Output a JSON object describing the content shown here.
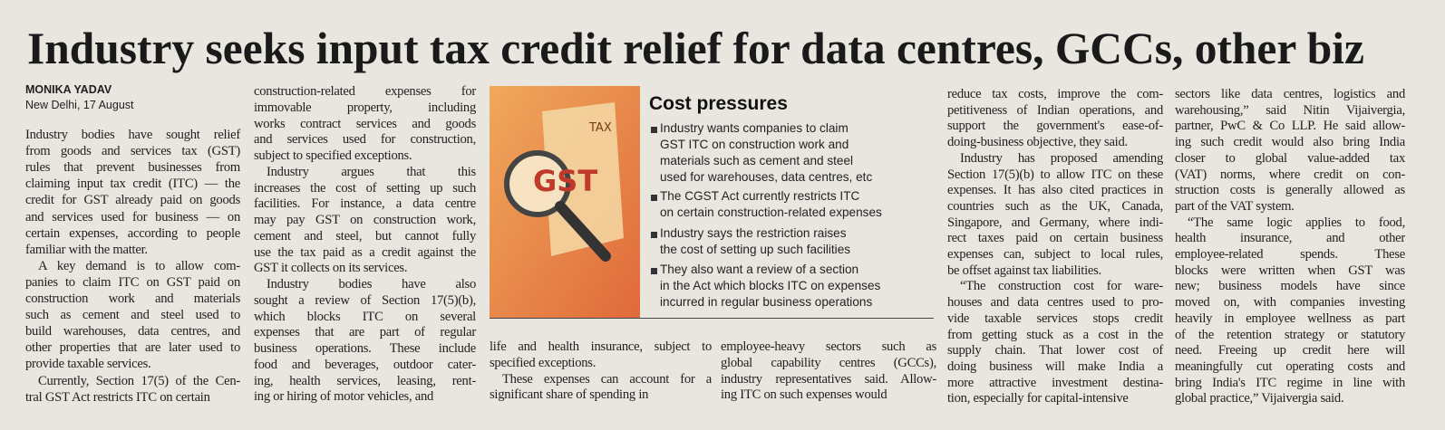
{
  "headline": "Industry seeks input tax credit relief for data centres, GCCs, other biz",
  "byline": {
    "author": "MONIKA YADAV",
    "dateline": "New Delhi, 17 August"
  },
  "columns": [
    {
      "paragraphs": [
        [
          "Industry bodies have sought relief",
          "from goods and services tax (GST)",
          "rules that prevent businesses from",
          "claiming input tax credit (ITC) — the",
          "credit for GST already paid on goods",
          "and services used for business — on",
          "certain expenses, according to people",
          "familiar with the matter."
        ],
        [
          "A key demand is to allow com-",
          "panies to claim ITC on GST paid on",
          "construction work and materials",
          "such as cement and steel used to",
          "build warehouses, data centres, and",
          "other properties that are later used to",
          "provide taxable services."
        ],
        [
          "Currently, Section 17(5) of the Cen-",
          "tral GST Act restricts ITC on certain"
        ]
      ]
    },
    {
      "paragraphs": [
        [
          "construction-related expenses for",
          "immovable property, including",
          "works contract services and goods",
          "and services used for construction,",
          "subject to specified exceptions."
        ],
        [
          "Industry argues that this",
          "increases the cost of setting up such",
          "facilities. For instance, a data centre",
          "may pay GST on construction work,",
          "cement and steel, but cannot fully",
          "use the tax paid as a credit against the",
          "GST it collects on its services."
        ],
        [
          "Industry bodies have also",
          "sought a review of Section 17(5)(b),",
          "which blocks ITC on several",
          "expenses that are part of regular",
          "business operations. These include",
          "food and beverages, outdoor cater-",
          "ing, health services, leasing, rent-",
          "ing or hiring of motor vehicles, and"
        ]
      ]
    },
    {
      "paragraphs": [
        [
          "life and health insurance, subject to",
          "specified exceptions."
        ],
        [
          "These expenses can account for a",
          "significant share of spending in"
        ]
      ]
    },
    {
      "paragraphs": [
        [
          "employee-heavy sectors such as",
          "global capability centres (GCCs),",
          "industry representatives said. Allow-",
          "ing ITC on such expenses would"
        ]
      ]
    },
    {
      "paragraphs": [
        [
          "reduce tax costs, improve the com-",
          "petitiveness of Indian operations, and",
          "support the government's ease-of-",
          "doing-business objective, they said."
        ],
        [
          "Industry has proposed amending",
          "Section 17(5)(b) to allow ITC on these",
          "expenses. It has also cited practices in",
          "countries such as the UK, Canada,",
          "Singapore, and Germany, where indi-",
          "rect taxes paid on certain business",
          "expenses can, subject to local rules,",
          "be offset against tax liabilities."
        ],
        [
          "“The construction cost for ware-",
          "houses and data centres used to pro-",
          "vide taxable services stops credit",
          "from getting stuck as a cost in the",
          "supply chain. That lower cost of",
          "doing business will make India a",
          "more attractive investment destina-",
          "tion, especially for capital-intensive"
        ]
      ]
    },
    {
      "paragraphs": [
        [
          "sectors like data centres, logistics and",
          "warehousing,” said Nitin Vijaivergia,",
          "partner, PwC & Co LLP. He said allow-",
          "ing such credit would also bring India",
          "closer to global value-added tax",
          "(VAT) norms, where credit on con-",
          "struction costs is generally allowed as",
          "part of the VAT system."
        ],
        [
          "“The same logic applies to food,",
          "health insurance, and other",
          "employee-related spends. These",
          "blocks were written when GST was",
          "new; business models have since",
          "moved on, with companies investing",
          "heavily in employee wellness as part",
          "of the retention strategy or statutory",
          "need. Freeing up credit here will",
          "meaningfully cut operating costs and",
          "bring India's ITC regime in line with",
          "global practice,” Vijaivergia said."
        ]
      ]
    }
  ],
  "factbox": {
    "title": "Cost pressures",
    "image_labels": [
      "TAX",
      "GST"
    ],
    "bullets": [
      [
        "Industry wants companies to claim",
        "GST ITC on construction work and",
        "materials such as cement and steel",
        "used for warehouses, data centres, etc"
      ],
      [
        "The CGST Act currently restricts ITC",
        "on certain construction-related expenses"
      ],
      [
        "Industry says the restriction raises",
        "the cost of setting up such facilities"
      ],
      [
        "They also want a review of a section",
        "in the Act which blocks ITC on expenses",
        "incurred in regular business operations"
      ]
    ]
  }
}
